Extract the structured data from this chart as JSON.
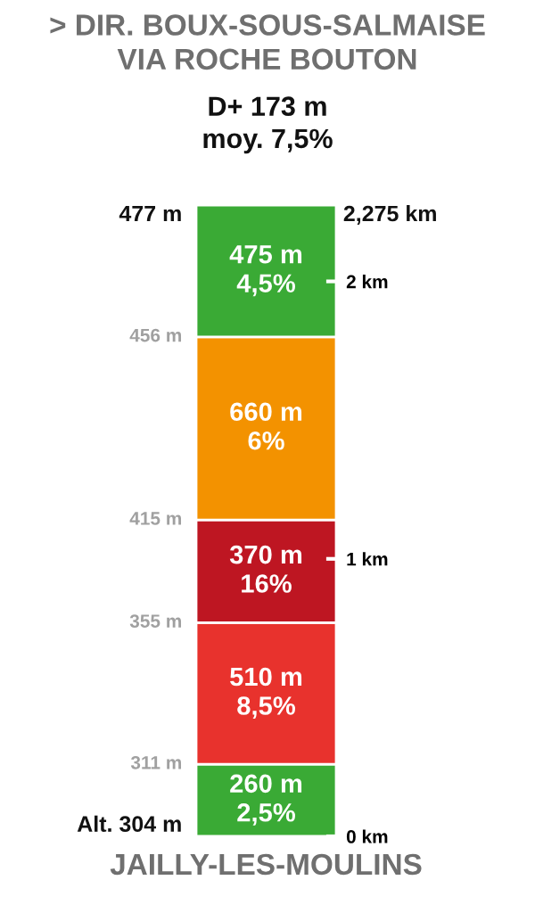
{
  "chart_data": {
    "type": "bar",
    "stacked": true,
    "title": "> DIR. BOUX-SOUS-SALMAISE\nVIA ROCHE BOUTON",
    "subtitle": "D+ 173 m\nmoy. 7,5%",
    "xlabel": "JAILLY-LES-MOULINS",
    "categories": [
      null
    ],
    "series": [
      {
        "color": "#3aaa35",
        "values": [
          0.26
        ]
      },
      {
        "color": "#e8322d",
        "values": [
          0.51
        ]
      },
      {
        "color": "#be1622",
        "values": [
          0.37
        ]
      },
      {
        "color": "#f39200",
        "values": [
          0.66
        ]
      },
      {
        "color": "#3aaa35",
        "values": [
          0.475
        ]
      }
    ],
    "ylim": [
      0,
      2.275
    ],
    "yticks": [
      {
        "value": 0,
        "label": "0 km"
      },
      {
        "value": 1,
        "label": "1 km"
      },
      {
        "value": 2,
        "label": "2 km"
      }
    ],
    "annotations": [
      "260 m\n2,5%",
      "510 m\n8,5%",
      "370 m\n16%",
      "660 m\n6%",
      "475 m\n4,5%",
      "Alt. 304 m",
      "311 m",
      "355 m",
      "415 m",
      "456 m",
      "477 m",
      "2,275 km"
    ],
    "grid": false,
    "legend": false
  }
}
